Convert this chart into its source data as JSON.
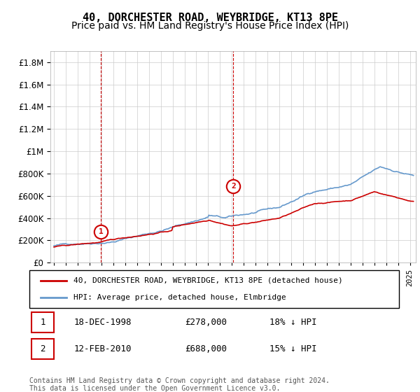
{
  "title": "40, DORCHESTER ROAD, WEYBRIDGE, KT13 8PE",
  "subtitle": "Price paid vs. HM Land Registry's House Price Index (HPI)",
  "ylim": [
    0,
    1900000
  ],
  "ytick_values": [
    0,
    200000,
    400000,
    600000,
    800000,
    1000000,
    1200000,
    1400000,
    1600000,
    1800000
  ],
  "ytick_labels": [
    "£0",
    "£200K",
    "£400K",
    "£600K",
    "£800K",
    "£1M",
    "£1.2M",
    "£1.4M",
    "£1.6M",
    "£1.8M"
  ],
  "xlim_start": 1994.7,
  "xlim_end": 2025.5,
  "sale1_x": 1998.96,
  "sale1_y": 278000,
  "sale1_label": "1",
  "sale2_x": 2010.12,
  "sale2_y": 688000,
  "sale2_label": "2",
  "red_color": "#cc0000",
  "blue_color": "#6699cc",
  "background_color": "#ffffff",
  "grid_color": "#cccccc",
  "legend_entry1": "40, DORCHESTER ROAD, WEYBRIDGE, KT13 8PE (detached house)",
  "legend_entry2": "HPI: Average price, detached house, Elmbridge",
  "table_row1": [
    "1",
    "18-DEC-1998",
    "£278,000",
    "18% ↓ HPI"
  ],
  "table_row2": [
    "2",
    "12-FEB-2010",
    "£688,000",
    "15% ↓ HPI"
  ],
  "footnote": "Contains HM Land Registry data © Crown copyright and database right 2024.\nThis data is licensed under the Open Government Licence v3.0.",
  "title_fontsize": 11,
  "subtitle_fontsize": 10,
  "tick_fontsize": 8.5
}
